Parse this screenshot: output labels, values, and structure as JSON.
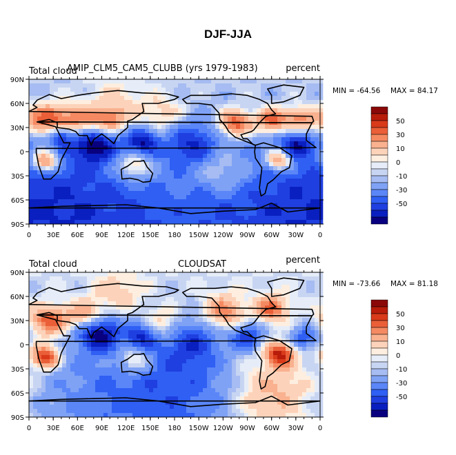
{
  "figure": {
    "title": "DJF-JJA"
  },
  "colors": {
    "levels": [
      -70,
      -60,
      -50,
      -40,
      -30,
      -20,
      -10,
      -5,
      0,
      5,
      10,
      20,
      30,
      40,
      50,
      60,
      70
    ],
    "palette": [
      "#08007f",
      "#0a1fbf",
      "#1f3fe0",
      "#2f5ff3",
      "#5a86f8",
      "#7fa2f5",
      "#a6bcf2",
      "#c8d5f2",
      "#e6edf8",
      "#fdeee0",
      "#fcd3ba",
      "#f9b18f",
      "#f58a62",
      "#ea5f38",
      "#d93a1a",
      "#b81c0a",
      "#8a0808"
    ]
  },
  "chart_data": [
    {
      "type": "contour-map",
      "left_label": "Total cloud",
      "center_label": "AMIP_CLM5_CAM5_CLUBB (yrs 1979-1983)",
      "right_label": "percent",
      "min_label": "MIN = -64.56",
      "max_label": "MAX =  84.17",
      "min": -64.56,
      "max": 84.17,
      "xlim": [
        0,
        360
      ],
      "ylim": [
        -90,
        90
      ],
      "blobs": [
        {
          "lon": 20,
          "lat": 38,
          "r": 18,
          "v": 55
        },
        {
          "lon": 60,
          "lat": 36,
          "r": 20,
          "v": 50
        },
        {
          "lon": 100,
          "lat": 38,
          "r": 14,
          "v": 40
        },
        {
          "lon": 255,
          "lat": 35,
          "r": 14,
          "v": 60
        },
        {
          "lon": 300,
          "lat": 38,
          "r": 14,
          "v": 55
        },
        {
          "lon": 335,
          "lat": 40,
          "r": 14,
          "v": 45
        },
        {
          "lon": 165,
          "lat": 45,
          "r": 20,
          "v": 25
        },
        {
          "lon": 20,
          "lat": -12,
          "r": 12,
          "v": 65
        },
        {
          "lon": 310,
          "lat": -10,
          "r": 12,
          "v": 60
        },
        {
          "lon": 130,
          "lat": -18,
          "r": 16,
          "v": 40
        },
        {
          "lon": 240,
          "lat": -25,
          "r": 22,
          "v": 25
        },
        {
          "lon": 80,
          "lat": 10,
          "r": 18,
          "v": -55
        },
        {
          "lon": 140,
          "lat": 12,
          "r": 14,
          "v": -45
        },
        {
          "lon": 200,
          "lat": 10,
          "r": 22,
          "v": -35
        },
        {
          "lon": 330,
          "lat": 8,
          "r": 14,
          "v": -40
        },
        {
          "lon": 40,
          "lat": 20,
          "r": 12,
          "v": -45
        },
        {
          "lon": 180,
          "lat": -50,
          "r": 60,
          "v": 18
        },
        {
          "lon": 90,
          "lat": -75,
          "r": 90,
          "v": -45
        },
        {
          "lon": 270,
          "lat": -78,
          "r": 90,
          "v": -40
        },
        {
          "lon": 110,
          "lat": 60,
          "r": 25,
          "v": 20
        }
      ]
    },
    {
      "type": "contour-map",
      "left_label": "Total cloud",
      "center_label": "CLOUDSAT",
      "right_label": "percent",
      "min_label": "MIN = -73.66",
      "max_label": "MAX =  81.18",
      "min": -73.66,
      "max": 81.18,
      "xlim": [
        0,
        360
      ],
      "ylim": [
        -90,
        90
      ],
      "blobs": [
        {
          "lon": 25,
          "lat": 30,
          "r": 16,
          "v": 50
        },
        {
          "lon": 70,
          "lat": 35,
          "r": 16,
          "v": 40
        },
        {
          "lon": 300,
          "lat": 45,
          "r": 14,
          "v": 45
        },
        {
          "lon": 240,
          "lat": 40,
          "r": 18,
          "v": 40
        },
        {
          "lon": 20,
          "lat": -15,
          "r": 12,
          "v": 65
        },
        {
          "lon": 310,
          "lat": -12,
          "r": 12,
          "v": 65
        },
        {
          "lon": 130,
          "lat": -20,
          "r": 14,
          "v": 35
        },
        {
          "lon": 165,
          "lat": 25,
          "r": 18,
          "v": 30
        },
        {
          "lon": 85,
          "lat": 15,
          "r": 18,
          "v": -60
        },
        {
          "lon": 140,
          "lat": 12,
          "r": 14,
          "v": -40
        },
        {
          "lon": 200,
          "lat": 5,
          "r": 24,
          "v": -30
        },
        {
          "lon": 270,
          "lat": 10,
          "r": 14,
          "v": -40
        },
        {
          "lon": 340,
          "lat": 8,
          "r": 12,
          "v": -35
        },
        {
          "lon": 110,
          "lat": 65,
          "r": 22,
          "v": 20
        },
        {
          "lon": 200,
          "lat": -50,
          "r": 60,
          "v": -25
        },
        {
          "lon": 100,
          "lat": -70,
          "r": 80,
          "v": -25
        },
        {
          "lon": 300,
          "lat": -60,
          "r": 40,
          "v": 30
        }
      ]
    }
  ],
  "axes": {
    "x_ticks": [
      "0",
      "30E",
      "60E",
      "90E",
      "120E",
      "150E",
      "180",
      "150W",
      "120W",
      "90W",
      "60W",
      "30W",
      "0"
    ],
    "y_ticks": [
      "90N",
      "60N",
      "30N",
      "0",
      "30S",
      "60S",
      "90S"
    ]
  },
  "colorbar": {
    "labels": [
      "50",
      "30",
      "10",
      "0",
      "-10",
      "-30",
      "-50"
    ]
  }
}
